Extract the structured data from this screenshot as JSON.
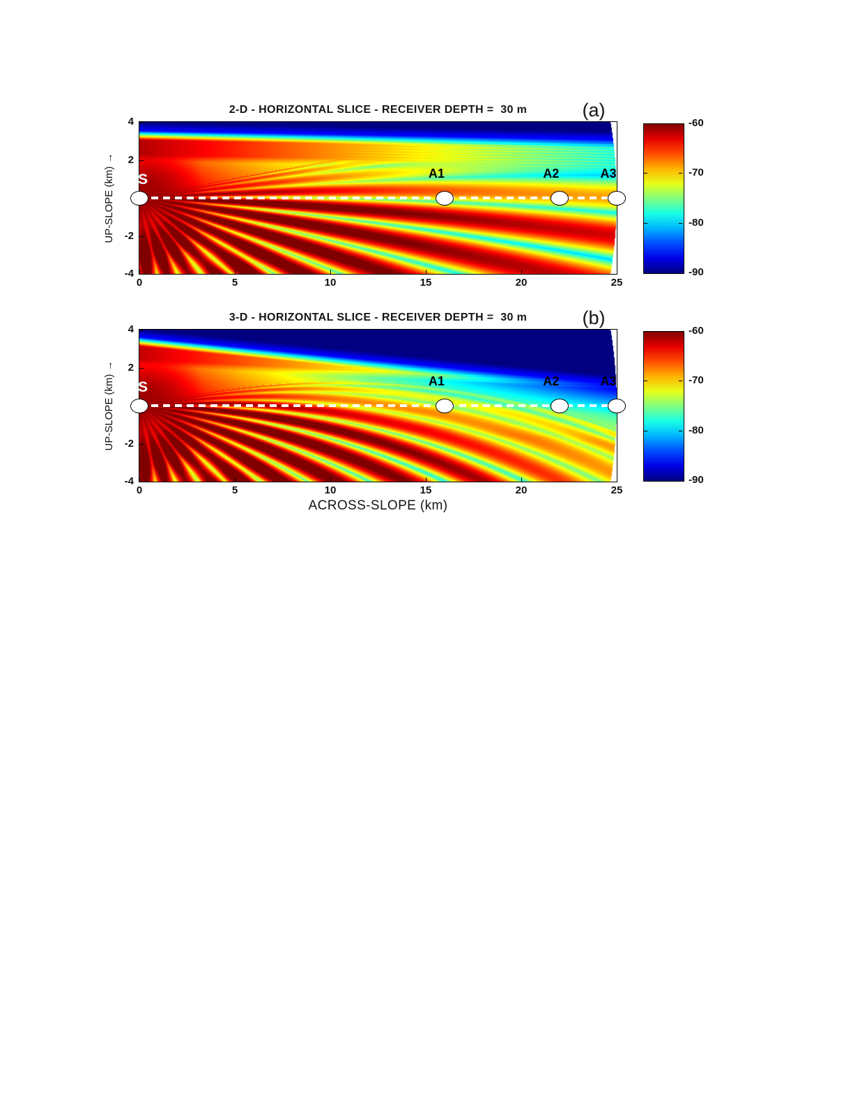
{
  "figure": {
    "y_axis_label": "UP-SLOPE (km) →",
    "x_axis_label": "ACROSS-SLOPE (km)",
    "panels": [
      {
        "corner_label": "(a)",
        "title": "2-D - HORIZONTAL SLICE - RECEIVER DEPTH =  30 m",
        "model": "2d",
        "x_ticks": [
          "0",
          "5",
          "10",
          "15",
          "20",
          "25"
        ],
        "y_ticks": [
          "4",
          "2",
          "-2",
          "-4"
        ],
        "colorbar_ticks": [
          "-60",
          "-70",
          "-80",
          "-90"
        ]
      },
      {
        "corner_label": "(b)",
        "title": "3-D - HORIZONTAL SLICE - RECEIVER DEPTH =  30 m",
        "model": "3d",
        "x_ticks": [
          "0",
          "5",
          "10",
          "15",
          "20",
          "25"
        ],
        "y_ticks": [
          "4",
          "2",
          "-2",
          "-4"
        ],
        "colorbar_ticks": [
          "-60",
          "-70",
          "-80",
          "-90"
        ]
      }
    ],
    "markers": [
      {
        "label": "S",
        "x_km": 0,
        "y_km": 0,
        "text_color": "#ffffff"
      },
      {
        "label": "A1",
        "x_km": 16,
        "y_km": 0,
        "text_color": "#000000"
      },
      {
        "label": "A2",
        "x_km": 22,
        "y_km": 0,
        "text_color": "#000000"
      },
      {
        "label": "A3",
        "x_km": 25,
        "y_km": 0,
        "text_color": "#000000"
      }
    ]
  },
  "chart_data": {
    "type": "heatmap",
    "panels": [
      {
        "label": "(a)",
        "title": "2-D - HORIZONTAL SLICE - RECEIVER DEPTH =  30 m",
        "model": "2-D"
      },
      {
        "label": "(b)",
        "title": "3-D - HORIZONTAL SLICE - RECEIVER DEPTH =  30 m",
        "model": "3-D"
      }
    ],
    "x": {
      "label": "ACROSS-SLOPE (km)",
      "range_km": [
        0,
        25
      ],
      "ticks": [
        0,
        5,
        10,
        15,
        20,
        25
      ]
    },
    "y": {
      "label": "UP-SLOPE (km)",
      "range_km": [
        -4,
        4
      ],
      "ticks": [
        4,
        2,
        -2,
        -4
      ]
    },
    "colorbar": {
      "ticks_db": [
        -60,
        -70,
        -80,
        -90
      ],
      "range_db": [
        -90,
        -60
      ],
      "colormap": "jet",
      "top_color": "#800000",
      "bottom_color": "#000080"
    },
    "receiver_depth_m": 30,
    "source": {
      "label": "S",
      "x_km": 0,
      "y_km": 0
    },
    "receivers": [
      {
        "label": "A1",
        "x_km": 16,
        "y_km": 0
      },
      {
        "label": "A2",
        "x_km": 22,
        "y_km": 0
      },
      {
        "label": "A3",
        "x_km": 25,
        "y_km": 0
      }
    ],
    "transect_line": {
      "y_km": 0,
      "style": "dashed",
      "color": "#ffffff"
    },
    "data_extent_km": 25
  }
}
